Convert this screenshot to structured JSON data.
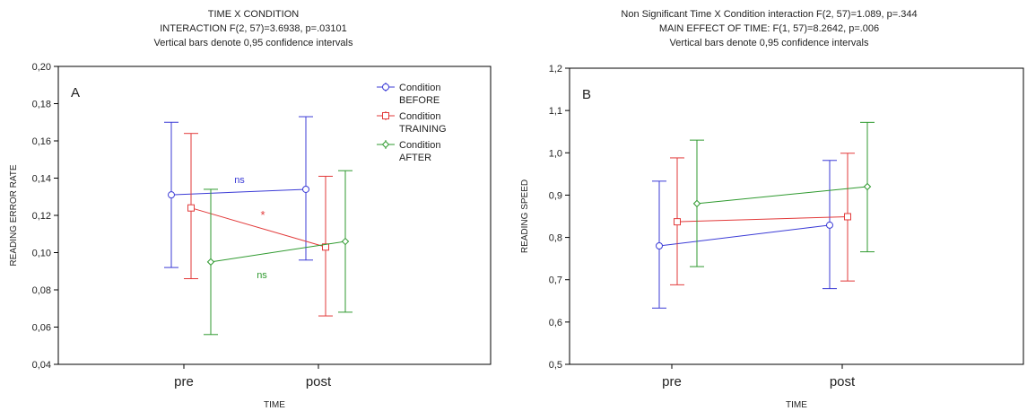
{
  "chart_data": [
    {
      "type": "line",
      "panel_label": "A",
      "title_lines": [
        "TIME X CONDITION",
        "INTERACTION F(2, 57)=3.6938, p=.03101",
        "Vertical bars denote 0,95 confidence intervals"
      ],
      "xlabel": "TIME",
      "ylabel": "READING ERROR RATE",
      "categories": [
        "pre",
        "post"
      ],
      "ylim": [
        0.04,
        0.2
      ],
      "yticks": [
        "0,04",
        "0,06",
        "0,08",
        "0,10",
        "0,12",
        "0,14",
        "0,16",
        "0,18",
        "0,20"
      ],
      "grid": false,
      "legend_position": "top-right",
      "series": [
        {
          "name": "Condition BEFORE",
          "legend_lines": [
            "Condition",
            "BEFORE"
          ],
          "color": "#3b3bd6",
          "marker": "circle",
          "values": [
            0.131,
            0.134
          ],
          "ci_low": [
            0.092,
            0.096
          ],
          "ci_high": [
            0.17,
            0.173
          ]
        },
        {
          "name": "Condition TRAINING",
          "legend_lines": [
            "Condition",
            "TRAINING"
          ],
          "color": "#e23a3a",
          "marker": "square",
          "values": [
            0.124,
            0.103
          ],
          "ci_low": [
            0.086,
            0.066
          ],
          "ci_high": [
            0.164,
            0.141
          ]
        },
        {
          "name": "Condition AFTER",
          "legend_lines": [
            "Condition",
            "AFTER"
          ],
          "color": "#2f9a2f",
          "marker": "diamond",
          "values": [
            0.095,
            0.106
          ],
          "ci_low": [
            0.056,
            0.068
          ],
          "ci_high": [
            0.134,
            0.144
          ]
        }
      ],
      "annotations": [
        {
          "text": "ns",
          "color": "#3b3bd6"
        },
        {
          "text": "*",
          "color": "#e23a3a"
        },
        {
          "text": "ns",
          "color": "#2f9a2f"
        }
      ]
    },
    {
      "type": "line",
      "panel_label": "B",
      "title_lines": [
        "Non Significant Time X Condition interaction F(2, 57)=1.089, p=.344",
        "MAIN EFFECT OF TIME: F(1, 57)=8.2642, p=.006",
        "Vertical bars denote 0,95 confidence intervals"
      ],
      "xlabel": "TIME",
      "ylabel": "READING SPEED",
      "categories": [
        "pre",
        "post"
      ],
      "ylim": [
        0.5,
        1.2
      ],
      "yticks": [
        "0,5",
        "0,6",
        "0,7",
        "0,8",
        "0,9",
        "1,0",
        "1,1",
        "1,2"
      ],
      "grid": false,
      "series": [
        {
          "color": "#3b3bd6",
          "marker": "circle",
          "values": [
            0.78,
            0.829
          ],
          "ci_low": [
            0.633,
            0.679
          ],
          "ci_high": [
            0.933,
            0.982
          ]
        },
        {
          "color": "#e23a3a",
          "marker": "square",
          "values": [
            0.837,
            0.849
          ],
          "ci_low": [
            0.688,
            0.697
          ],
          "ci_high": [
            0.988,
            0.999
          ]
        },
        {
          "color": "#2f9a2f",
          "marker": "diamond",
          "values": [
            0.88,
            0.92
          ],
          "ci_low": [
            0.731,
            0.766
          ],
          "ci_high": [
            1.03,
            1.072
          ]
        }
      ]
    }
  ]
}
